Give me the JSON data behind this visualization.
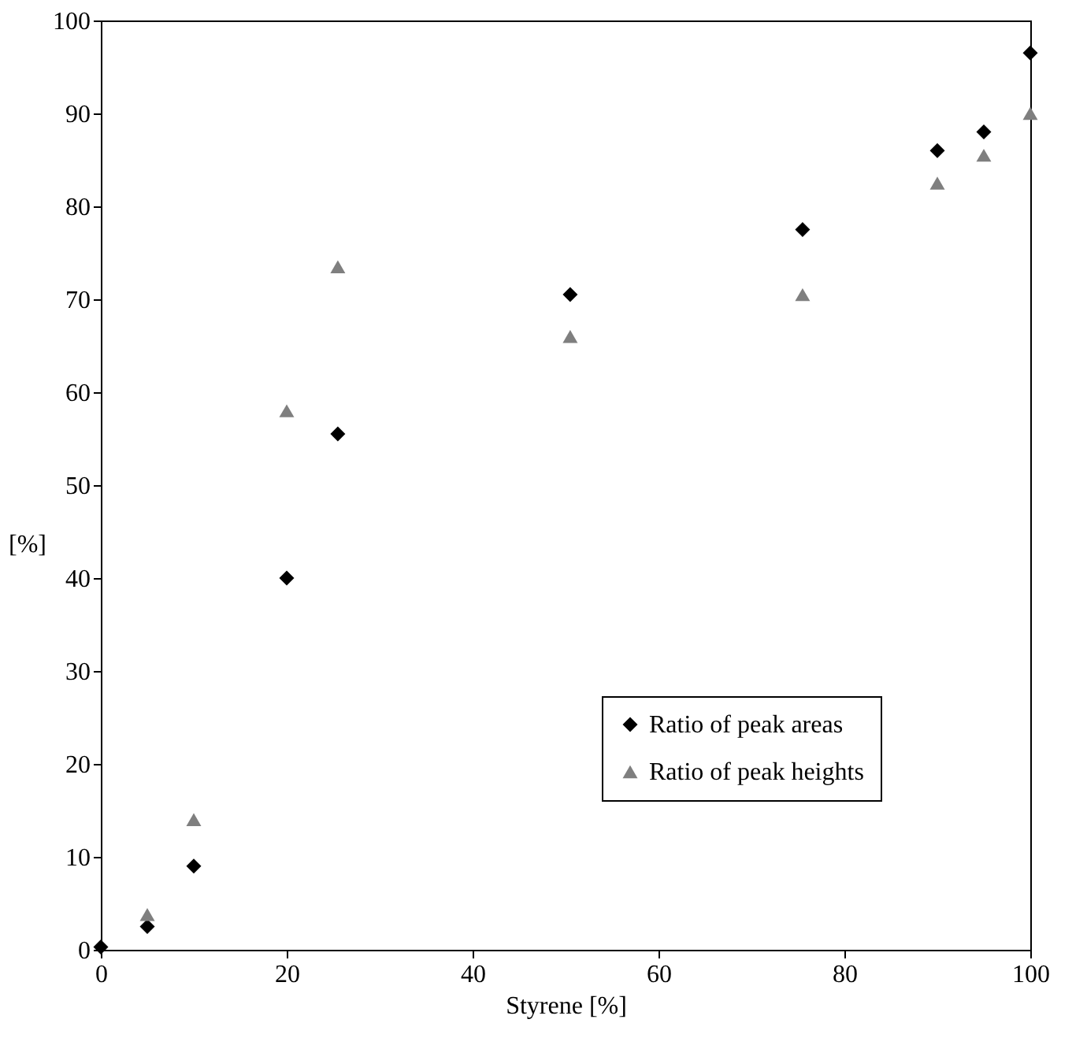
{
  "chart_data": {
    "type": "scatter",
    "xlabel": "Styrene [%]",
    "ylabel": "[%]",
    "xlim": [
      0,
      100
    ],
    "ylim": [
      0,
      100
    ],
    "xticks": [
      0,
      20,
      40,
      60,
      80,
      100
    ],
    "yticks": [
      0,
      10,
      20,
      30,
      40,
      50,
      60,
      70,
      80,
      90,
      100
    ],
    "grid": false,
    "legend": "bottom right",
    "series": [
      {
        "name": "Ratio of peak areas",
        "color": "#000000",
        "marker": "diamond",
        "x": [
          0,
          5,
          10,
          20,
          25.5,
          50.5,
          75.5,
          90,
          95,
          100
        ],
        "values": [
          0.3,
          2.5,
          9,
          40,
          55.5,
          70.5,
          77.5,
          86,
          88,
          96.5
        ]
      },
      {
        "name": "Ratio of peak heights",
        "color": "#7f7f7f",
        "marker": "triangle",
        "x": [
          5,
          10,
          20,
          25.5,
          50.5,
          75.5,
          90,
          95,
          100
        ],
        "values": [
          3.8,
          14,
          58,
          73.5,
          66,
          70.5,
          82.5,
          85.5,
          90
        ]
      }
    ]
  }
}
